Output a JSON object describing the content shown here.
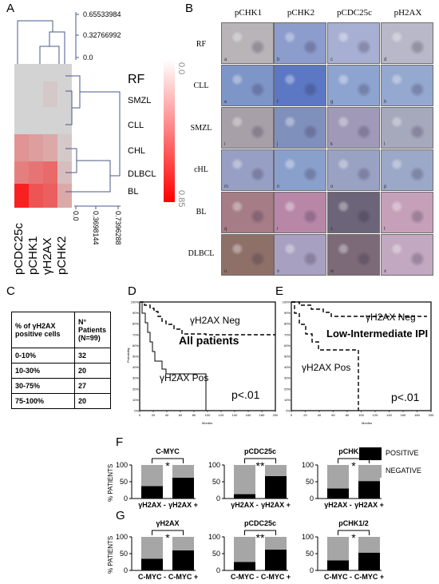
{
  "panel_labels": {
    "A": "A",
    "B": "B",
    "C": "C",
    "D": "D",
    "E": "E",
    "F": "F",
    "G": "G"
  },
  "panel_a": {
    "rows": [
      "SMZL",
      "CLL",
      "CHL",
      "DLBCL",
      "BL"
    ],
    "cols": [
      "pCDC25c",
      "pCHK1",
      "γH2AX",
      "pCHK2"
    ],
    "row_title": "RF",
    "values": [
      [
        0.0,
        0.0,
        0.0,
        0.0
      ],
      [
        0.0,
        0.0,
        0.05,
        0.0
      ],
      [
        0.0,
        0.0,
        0.0,
        0.0
      ],
      [
        0.3,
        0.25,
        0.2,
        0.05
      ],
      [
        0.4,
        0.45,
        0.5,
        0.1
      ],
      [
        0.85,
        0.6,
        0.55,
        0.2
      ]
    ],
    "top_dendro_ticks": [
      "0.65533984",
      "0.32766992",
      "0.0"
    ],
    "right_dendro_ticks": [
      "0.0",
      "0.3698144",
      "0.7396288"
    ],
    "colorbar_ticks": [
      "0.0",
      "0.85"
    ]
  },
  "panel_b": {
    "col_headers": [
      "pCHK1",
      "pCHK2",
      "pCDC25c",
      "pH2AX"
    ],
    "row_headers": [
      "RF",
      "CLL",
      "SMZL",
      "cHL",
      "BL",
      "DLBCL"
    ],
    "subpanel_letters": [
      "a",
      "b",
      "c",
      "d",
      "e",
      "f",
      "g",
      "h",
      "i",
      "j",
      "k",
      "l",
      "m",
      "n",
      "o",
      "p",
      "q",
      "r",
      "s",
      "t",
      "u",
      "v",
      "w",
      "x"
    ]
  },
  "panel_c": {
    "header_col1": "% of γH2AX positive cells",
    "header_col2": "N° Patients (N=99)",
    "rows": [
      {
        "range": "0-10%",
        "n": "32"
      },
      {
        "range": "10-30%",
        "n": "20"
      },
      {
        "range": "30-75%",
        "n": "27"
      },
      {
        "range": "75-100%",
        "n": "20"
      }
    ]
  },
  "panel_d": {
    "title": "All patients",
    "neg_label": "γH2AX  Neg",
    "pos_label": "γH2AX  Pos",
    "pvalue": "p<.01",
    "ylabel": "Probability",
    "xlabel": "Months",
    "yticks": [
      "100%",
      "90%",
      "80%",
      "70%",
      "60%",
      "50%",
      "40%",
      "30%",
      "20%",
      "10%",
      "0%"
    ],
    "xticks": [
      "0",
      "20",
      "40",
      "60",
      "80",
      "100",
      "120",
      "140",
      "160",
      "180",
      "200"
    ]
  },
  "panel_e": {
    "title": "Low-Intermediate IPI",
    "neg_label": "γH2AX  Neg",
    "pos_label": "γH2AX Pos",
    "pvalue": "p<.01",
    "xlabel": "Months",
    "yticks": [
      "100%",
      "90%",
      "80%",
      "70%",
      "60%",
      "50%",
      "40%",
      "30%",
      "20%",
      "10%",
      "0%"
    ],
    "xticks": [
      "0",
      "20",
      "40",
      "60",
      "80",
      "100",
      "120",
      "140",
      "160",
      "180",
      "200"
    ]
  },
  "colors": {
    "positive": "#000000",
    "negative": "#a6a6a6",
    "heat_max": "#ff0000",
    "heat_min": "#d3d3d3"
  },
  "legend": {
    "positive": "POSITIVE",
    "negative": "NEGATIVE"
  },
  "chart_data": [
    {
      "type": "bar",
      "panel": "F",
      "title": "C-MYC",
      "ylabel": "% PATIENTS",
      "ylim": [
        0,
        100
      ],
      "yticks": [
        "0",
        "50",
        "100"
      ],
      "categories": [
        "γH2AX -",
        "γH2AX +"
      ],
      "sig": "*",
      "series": [
        {
          "name": "POSITIVE",
          "values": [
            37,
            62
          ]
        },
        {
          "name": "NEGATIVE",
          "values": [
            63,
            38
          ]
        }
      ]
    },
    {
      "type": "bar",
      "panel": "F",
      "title": "pCDC25c",
      "ylim": [
        0,
        100
      ],
      "yticks": [
        "0",
        "50",
        "100"
      ],
      "categories": [
        "γH2AX -",
        "γH2AX +"
      ],
      "sig": "**",
      "series": [
        {
          "name": "POSITIVE",
          "values": [
            13,
            67
          ]
        },
        {
          "name": "NEGATIVE",
          "values": [
            87,
            33
          ]
        }
      ]
    },
    {
      "type": "bar",
      "panel": "F",
      "title": "pCHK1/2",
      "ylim": [
        0,
        100
      ],
      "yticks": [
        "0",
        "50",
        "100"
      ],
      "categories": [
        "γH2AX -",
        "γH2AX +"
      ],
      "sig": "*",
      "series": [
        {
          "name": "POSITIVE",
          "values": [
            30,
            52
          ]
        },
        {
          "name": "NEGATIVE",
          "values": [
            70,
            48
          ]
        }
      ]
    },
    {
      "type": "bar",
      "panel": "G",
      "title": "γH2AX",
      "ylabel": "% PATIENTS",
      "ylim": [
        0,
        100
      ],
      "yticks": [
        "0",
        "50",
        "100"
      ],
      "categories": [
        "C-MYC -",
        "C-MYC +"
      ],
      "sig": "*",
      "series": [
        {
          "name": "POSITIVE",
          "values": [
            35,
            60
          ]
        },
        {
          "name": "NEGATIVE",
          "values": [
            65,
            40
          ]
        }
      ]
    },
    {
      "type": "bar",
      "panel": "G",
      "title": "pCDC25c",
      "ylim": [
        0,
        100
      ],
      "yticks": [
        "0",
        "50",
        "100"
      ],
      "categories": [
        "C-MYC -",
        "C-MYC +"
      ],
      "sig": "**",
      "series": [
        {
          "name": "POSITIVE",
          "values": [
            25,
            62
          ]
        },
        {
          "name": "NEGATIVE",
          "values": [
            75,
            38
          ]
        }
      ]
    },
    {
      "type": "bar",
      "panel": "G",
      "title": "pCHK1/2",
      "ylim": [
        0,
        100
      ],
      "yticks": [
        "0",
        "50",
        "100"
      ],
      "categories": [
        "C-MYC -",
        "C-MYC +"
      ],
      "sig": "*",
      "series": [
        {
          "name": "POSITIVE",
          "values": [
            30,
            53
          ]
        },
        {
          "name": "NEGATIVE",
          "values": [
            70,
            47
          ]
        }
      ]
    }
  ]
}
